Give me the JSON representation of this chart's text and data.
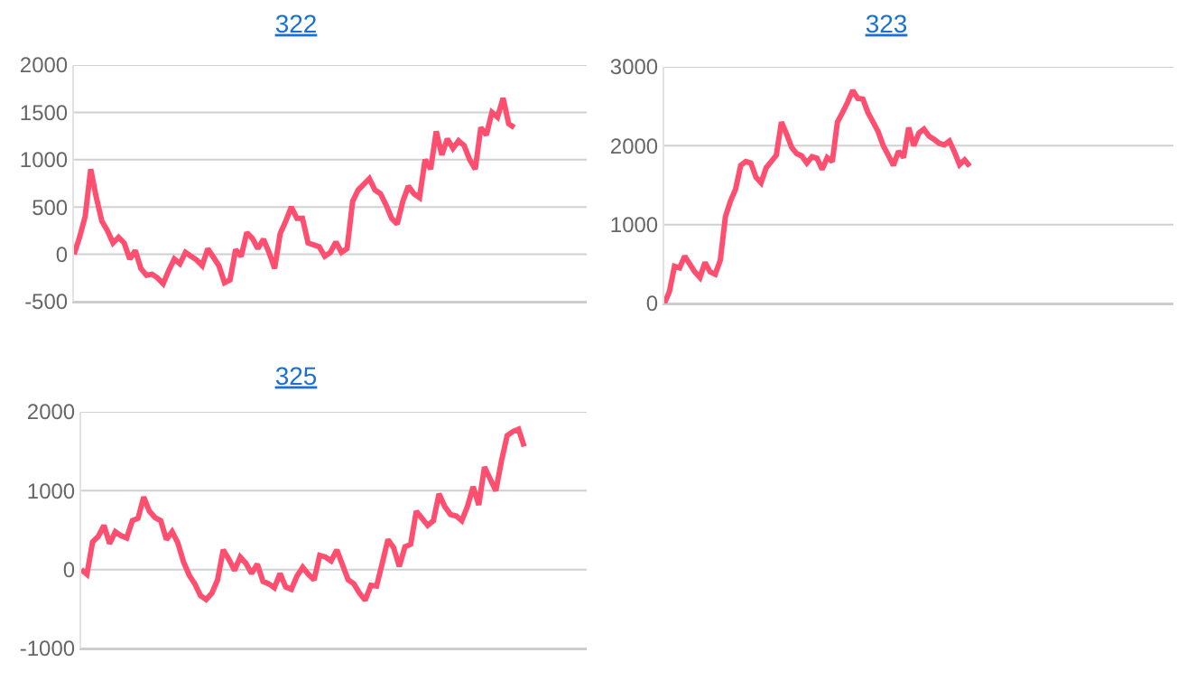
{
  "chart_data": [
    {
      "type": "line",
      "title": "322",
      "categories": [
        null,
        null,
        null,
        null,
        null,
        null,
        null,
        null,
        null,
        null,
        null,
        null,
        null,
        null,
        null,
        null,
        null,
        null,
        null,
        null,
        null,
        null,
        null,
        null,
        null,
        null,
        null,
        null,
        null,
        null,
        null,
        null,
        null,
        null,
        null,
        null,
        null,
        null,
        null,
        null,
        null,
        null,
        null,
        null,
        null,
        null,
        null,
        null,
        null,
        null,
        null,
        null,
        null,
        null,
        null,
        null,
        null,
        null,
        null,
        null,
        null,
        null,
        null,
        null,
        null,
        null,
        null,
        null,
        null,
        null,
        null,
        null,
        null,
        null,
        null,
        null,
        null,
        null,
        null,
        null,
        null,
        null,
        null,
        null,
        null,
        null,
        null,
        null,
        null,
        null,
        null,
        null,
        null
      ],
      "series": [
        {
          "color": "#ff4f70",
          "values": [
            0,
            180,
            400,
            900,
            600,
            350,
            250,
            120,
            180,
            120,
            -50,
            40,
            -150,
            -220,
            -210,
            -250,
            -310,
            -170,
            -50,
            -100,
            20,
            -20,
            -60,
            -120,
            60,
            -30,
            -120,
            -300,
            -270,
            50,
            -20,
            230,
            170,
            60,
            160,
            20,
            -150,
            220,
            350,
            500,
            380,
            380,
            120,
            100,
            80,
            -20,
            20,
            130,
            20,
            60,
            560,
            680,
            740,
            800,
            680,
            640,
            520,
            380,
            320,
            560,
            720,
            640,
            600,
            1000,
            900,
            1300,
            1050,
            1220,
            1120,
            1200,
            1150,
            1000,
            900,
            1340,
            1260,
            1500,
            1450,
            1650,
            1380,
            1340,
            null,
            null,
            null,
            null,
            null,
            null,
            null,
            null,
            null,
            null,
            null,
            null,
            null
          ]
        }
      ],
      "ylim": [
        -500,
        2000
      ],
      "yticks": [
        -500,
        0,
        500,
        1000,
        1500,
        2000
      ],
      "grid": "y"
    },
    {
      "type": "line",
      "title": "323",
      "categories": [
        null,
        null,
        null,
        null,
        null,
        null,
        null,
        null,
        null,
        null,
        null,
        null,
        null,
        null,
        null,
        null,
        null,
        null,
        null,
        null,
        null,
        null,
        null,
        null,
        null,
        null,
        null,
        null,
        null,
        null,
        null,
        null,
        null,
        null,
        null,
        null,
        null,
        null,
        null,
        null,
        null,
        null,
        null,
        null,
        null,
        null,
        null,
        null,
        null,
        null,
        null,
        null,
        null,
        null,
        null,
        null,
        null,
        null,
        null,
        null,
        null,
        null,
        null,
        null,
        null,
        null,
        null,
        null,
        null,
        null,
        null,
        null,
        null,
        null,
        null,
        null,
        null,
        null,
        null,
        null,
        null,
        null,
        null,
        null,
        null,
        null,
        null,
        null,
        null,
        null,
        null,
        null,
        null,
        null,
        null,
        null,
        null,
        null,
        null,
        null,
        null
      ],
      "series": [
        {
          "color": "#ff4f70",
          "values": [
            0,
            150,
            470,
            450,
            600,
            500,
            400,
            330,
            520,
            400,
            370,
            550,
            1100,
            1300,
            1450,
            1750,
            1800,
            1780,
            1600,
            1530,
            1720,
            1800,
            1880,
            2300,
            2150,
            1980,
            1900,
            1870,
            1780,
            1860,
            1840,
            1700,
            1850,
            1800,
            2300,
            2420,
            2550,
            2700,
            2600,
            2590,
            2420,
            2300,
            2180,
            2000,
            1880,
            1750,
            1930,
            1850,
            2230,
            2000,
            2160,
            2210,
            2120,
            2080,
            2030,
            2010,
            2060,
            1920,
            1760,
            1820,
            1740,
            null,
            null,
            null,
            null,
            null,
            null,
            null,
            null,
            null,
            null,
            null,
            null,
            null,
            null,
            null,
            null,
            null,
            null,
            null,
            null,
            null,
            null,
            null,
            null,
            null,
            null,
            null,
            null,
            null,
            null,
            null,
            null,
            null,
            null,
            null,
            null,
            null,
            null,
            null,
            null
          ]
        }
      ],
      "ylim": [
        0,
        3000
      ],
      "yticks": [
        0,
        1000,
        2000,
        3000
      ],
      "grid": "y"
    },
    {
      "type": "line",
      "title": "325",
      "categories": [
        null,
        null,
        null,
        null,
        null,
        null,
        null,
        null,
        null,
        null,
        null,
        null,
        null,
        null,
        null,
        null,
        null,
        null,
        null,
        null,
        null,
        null,
        null,
        null,
        null,
        null,
        null,
        null,
        null,
        null,
        null,
        null,
        null,
        null,
        null,
        null,
        null,
        null,
        null,
        null,
        null,
        null,
        null,
        null,
        null,
        null,
        null,
        null,
        null,
        null,
        null,
        null,
        null,
        null,
        null,
        null,
        null,
        null,
        null,
        null,
        null,
        null,
        null,
        null,
        null,
        null,
        null,
        null,
        null,
        null,
        null,
        null,
        null,
        null,
        null,
        null,
        null,
        null,
        null,
        null,
        null,
        null,
        null,
        null,
        null,
        null,
        null,
        null,
        null,
        null
      ],
      "series": [
        {
          "color": "#ff4f70",
          "values": [
            0,
            -60,
            350,
            420,
            560,
            330,
            480,
            430,
            400,
            620,
            650,
            920,
            740,
            660,
            620,
            380,
            480,
            340,
            100,
            -70,
            -180,
            -330,
            -380,
            -300,
            -130,
            250,
            130,
            -10,
            160,
            80,
            -50,
            70,
            -150,
            -180,
            -230,
            -50,
            -220,
            -250,
            -80,
            30,
            -60,
            -130,
            180,
            160,
            110,
            250,
            60,
            -130,
            -180,
            -300,
            -390,
            -200,
            -210,
            80,
            380,
            280,
            40,
            290,
            320,
            740,
            650,
            560,
            620,
            960,
            800,
            700,
            680,
            620,
            800,
            1050,
            820,
            1300,
            1150,
            1000,
            1380,
            1700,
            1750,
            1780,
            1560,
            null,
            null,
            null,
            null,
            null,
            null,
            null,
            null,
            null,
            null,
            null
          ]
        }
      ],
      "ylim": [
        -1000,
        2000
      ],
      "yticks": [
        -1000,
        0,
        1000,
        2000
      ],
      "grid": "y"
    }
  ]
}
